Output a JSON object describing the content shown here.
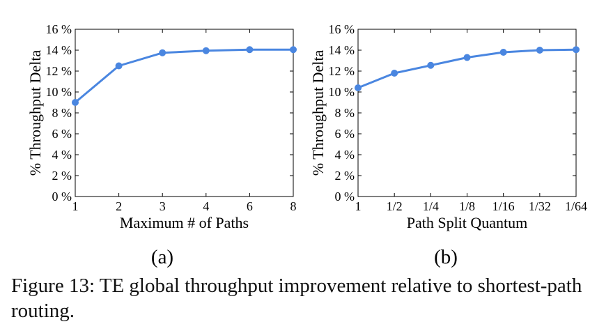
{
  "chart_data": [
    {
      "type": "line",
      "panel_label": "(a)",
      "xlabel": "Maximum # of Paths",
      "ylabel": "% Throughput Delta",
      "categories": [
        "1",
        "2",
        "3",
        "4",
        "6",
        "8"
      ],
      "series": [
        {
          "values": [
            9.0,
            12.5,
            13.75,
            13.95,
            14.05,
            14.05
          ]
        }
      ],
      "y_ticks": [
        "0 %",
        "2 %",
        "4 %",
        "6 %",
        "8 %",
        "10 %",
        "12 %",
        "14 %",
        "16 %"
      ],
      "ylim": [
        0,
        16
      ],
      "color": "#4a86e0",
      "grid": false
    },
    {
      "type": "line",
      "panel_label": "(b)",
      "xlabel": "Path Split Quantum",
      "ylabel": "% Throughput Delta",
      "categories": [
        "1",
        "1/2",
        "1/4",
        "1/8",
        "1/16",
        "1/32",
        "1/64"
      ],
      "series": [
        {
          "values": [
            10.4,
            11.8,
            12.55,
            13.3,
            13.8,
            14.0,
            14.05
          ]
        }
      ],
      "y_ticks": [
        "0 %",
        "2 %",
        "4 %",
        "6 %",
        "8 %",
        "10 %",
        "12 %",
        "14 %",
        "16 %"
      ],
      "ylim": [
        0,
        16
      ],
      "color": "#4a86e0",
      "grid": false
    }
  ],
  "caption": "Figure 13: TE global throughput improvement relative to shortest-path routing."
}
